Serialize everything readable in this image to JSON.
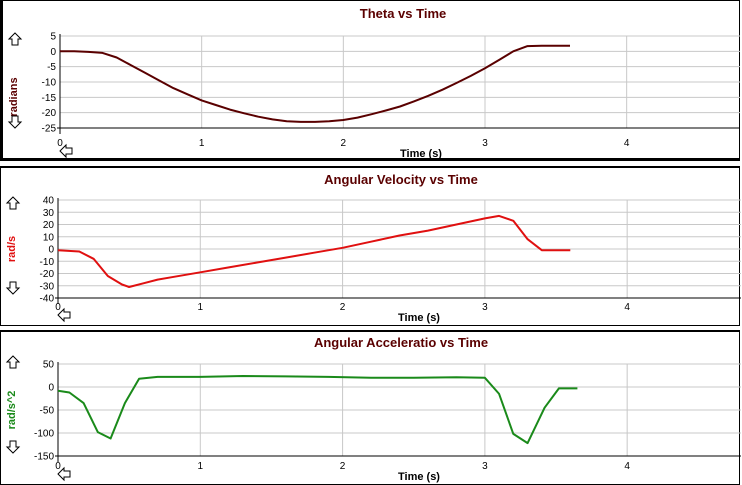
{
  "chart_data": [
    {
      "type": "line",
      "title": "Theta vs Time",
      "xlabel": "Time (s)",
      "ylabel": "radians",
      "color": "#5a0000",
      "xlim": [
        0,
        4.8
      ],
      "ylim": [
        -25,
        5
      ],
      "xticks": [
        0,
        1,
        2,
        3,
        4
      ],
      "yticks": [
        5,
        0,
        -5,
        -10,
        -15,
        -20,
        -25
      ],
      "x": [
        0,
        0.1,
        0.2,
        0.3,
        0.4,
        0.5,
        0.6,
        0.7,
        0.8,
        0.9,
        1.0,
        1.1,
        1.2,
        1.3,
        1.4,
        1.5,
        1.6,
        1.7,
        1.8,
        1.9,
        2.0,
        2.1,
        2.2,
        2.3,
        2.4,
        2.5,
        2.6,
        2.7,
        2.8,
        2.9,
        3.0,
        3.1,
        3.2,
        3.3,
        3.4,
        3.5,
        3.6
      ],
      "y": [
        0,
        0,
        -0.2,
        -0.5,
        -2,
        -4.5,
        -7,
        -9.5,
        -12,
        -14,
        -16,
        -17.5,
        -19,
        -20.2,
        -21.3,
        -22.2,
        -22.8,
        -23,
        -23,
        -22.8,
        -22.4,
        -21.6,
        -20.5,
        -19.3,
        -18,
        -16.3,
        -14.5,
        -12.5,
        -10.3,
        -8,
        -5.5,
        -2.8,
        0,
        1.7,
        1.8,
        1.8,
        1.8
      ]
    },
    {
      "type": "line",
      "title": "Angular Velocity vs Time",
      "xlabel": "Time (s)",
      "ylabel": "rad/s",
      "color": "#e01010",
      "xlim": [
        0,
        4.8
      ],
      "ylim": [
        -40,
        40
      ],
      "xticks": [
        0,
        1,
        2,
        3,
        4
      ],
      "yticks": [
        40,
        30,
        20,
        10,
        0,
        -10,
        -20,
        -30,
        -40
      ],
      "x": [
        0,
        0.15,
        0.25,
        0.35,
        0.45,
        0.5,
        0.6,
        0.7,
        0.8,
        1.0,
        1.2,
        1.4,
        1.6,
        1.8,
        2.0,
        2.2,
        2.4,
        2.6,
        2.8,
        3.0,
        3.1,
        3.2,
        3.3,
        3.4,
        3.5,
        3.6
      ],
      "y": [
        -1,
        -2,
        -8,
        -22,
        -29,
        -31,
        -28,
        -25,
        -23,
        -19,
        -15,
        -11,
        -7,
        -3,
        1,
        6,
        11,
        15,
        20,
        25,
        27,
        23,
        8,
        -1,
        -1,
        -1
      ]
    },
    {
      "type": "line",
      "title": "Angular Acceleratio vs Time",
      "xlabel": "Time (s)",
      "ylabel": "rad/s^2",
      "color": "#1a8a1a",
      "xlim": [
        0,
        4.8
      ],
      "ylim": [
        -150,
        50
      ],
      "xticks": [
        0,
        1,
        2,
        3,
        4
      ],
      "yticks": [
        50,
        0,
        -50,
        -100,
        -150
      ],
      "x": [
        0,
        0.08,
        0.18,
        0.28,
        0.37,
        0.47,
        0.57,
        0.7,
        1.0,
        1.3,
        1.6,
        1.9,
        2.2,
        2.5,
        2.8,
        3.0,
        3.1,
        3.2,
        3.3,
        3.42,
        3.52,
        3.65
      ],
      "y": [
        -8,
        -12,
        -35,
        -98,
        -112,
        -35,
        18,
        22,
        22,
        24,
        23,
        22,
        20,
        20,
        21,
        20,
        -15,
        -102,
        -122,
        -45,
        -3,
        -3
      ]
    }
  ]
}
